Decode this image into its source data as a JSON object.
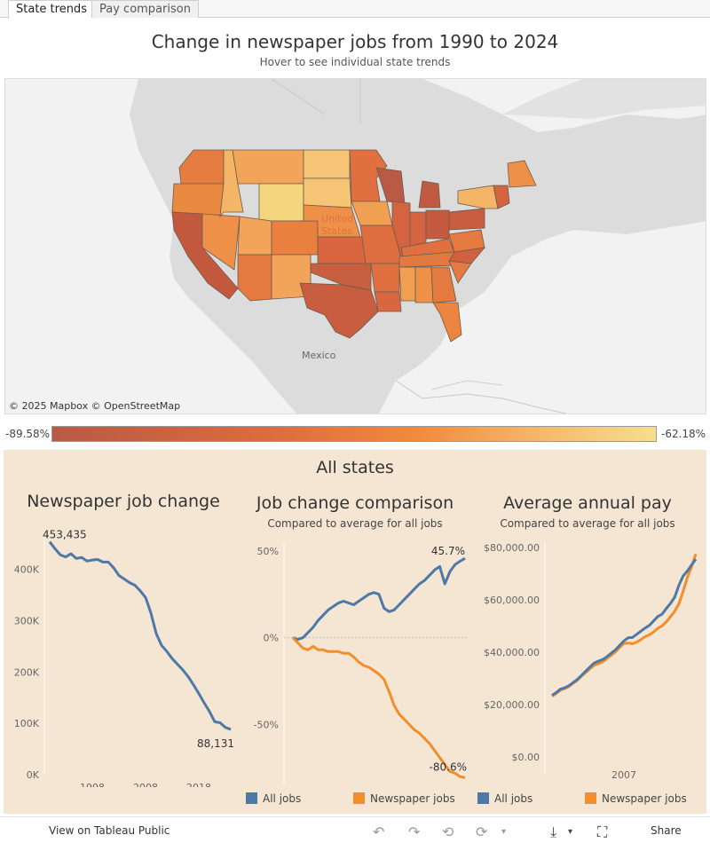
{
  "tabs": [
    "State trends",
    "Pay comparison"
  ],
  "header": {
    "title": "Change in newspaper jobs from 1990 to 2024",
    "subtitle": "Hover to see individual state trends"
  },
  "map": {
    "credit": "© 2025 Mapbox  © OpenStreetMap",
    "labels": [
      "United States",
      "Mexico"
    ],
    "legend_min": "-89.58%",
    "legend_max": "-62.18%"
  },
  "panel": {
    "title": "All states"
  },
  "charts": [
    {
      "title": "Newspaper job change",
      "subtitle": ""
    },
    {
      "title": "Job change comparison",
      "subtitle": "Compared to average for all jobs"
    },
    {
      "title": "Average annual pay",
      "subtitle": "Compared to average for all jobs"
    }
  ],
  "legend": {
    "all_jobs": "All jobs",
    "newspaper_jobs": "Newspaper jobs"
  },
  "colors": {
    "all_jobs": "#4e79a7",
    "newspaper_jobs": "#f28e2b",
    "panel_bg": "#f4e6d3"
  },
  "chart_data": [
    {
      "type": "line",
      "title": "Newspaper job change",
      "x": [
        1990,
        1991,
        1992,
        1993,
        1994,
        1995,
        1996,
        1997,
        1998,
        1999,
        2000,
        2001,
        2002,
        2003,
        2004,
        2005,
        2006,
        2007,
        2008,
        2009,
        2010,
        2011,
        2012,
        2013,
        2014,
        2015,
        2016,
        2017,
        2018,
        2019,
        2020,
        2021,
        2022,
        2023,
        2024
      ],
      "series": [
        {
          "name": "",
          "values": [
            453435,
            440000,
            428000,
            424000,
            430000,
            421000,
            423000,
            416000,
            418000,
            419000,
            414000,
            414000,
            403000,
            388000,
            381000,
            374000,
            369000,
            358000,
            345000,
            315000,
            275000,
            252000,
            240000,
            226000,
            215000,
            204000,
            191000,
            175000,
            158000,
            140000,
            123000,
            103000,
            101000,
            92000,
            88131
          ]
        }
      ],
      "annotations": [
        "453,435",
        "88,131"
      ],
      "x_ticks": [
        "1998",
        "2008",
        "2018"
      ],
      "y_ticks": [
        "0K",
        "100K",
        "200K",
        "300K",
        "400K"
      ],
      "ylim": [
        0,
        470000
      ],
      "xlim": [
        1990,
        2024
      ]
    },
    {
      "type": "line",
      "title": "Job change comparison",
      "subtitle": "Compared to average for all jobs",
      "x": [
        1990,
        1991,
        1992,
        1993,
        1994,
        1995,
        1996,
        1997,
        1998,
        1999,
        2000,
        2001,
        2002,
        2003,
        2004,
        2005,
        2006,
        2007,
        2008,
        2009,
        2010,
        2011,
        2012,
        2013,
        2014,
        2015,
        2016,
        2017,
        2018,
        2019,
        2020,
        2021,
        2022,
        2023,
        2024
      ],
      "series": [
        {
          "name": "All jobs",
          "values": [
            0,
            -1,
            0,
            3,
            6,
            10,
            13,
            16,
            18,
            20,
            21,
            20,
            19,
            21,
            23,
            25,
            26,
            25,
            17,
            15,
            16,
            19,
            22,
            25,
            28,
            31,
            33,
            36,
            39,
            41,
            31,
            38,
            42,
            44,
            45.7
          ]
        },
        {
          "name": "Newspaper jobs",
          "values": [
            0,
            -3,
            -6,
            -7,
            -5,
            -7,
            -7,
            -8,
            -8,
            -8,
            -9,
            -9,
            -11,
            -14,
            -16,
            -17,
            -19,
            -21,
            -24,
            -31,
            -39,
            -44,
            -47,
            -50,
            -53,
            -55,
            -58,
            -61,
            -65,
            -69,
            -73,
            -77,
            -78,
            -80,
            -80.6
          ]
        }
      ],
      "annotations": [
        "45.7%",
        "-80.6%"
      ],
      "y_ticks": [
        "50%",
        "0%",
        "-50%"
      ],
      "ylim": [
        -85,
        55
      ],
      "xlim": [
        1990,
        2024
      ]
    },
    {
      "type": "line",
      "title": "Average annual pay",
      "subtitle": "Compared to average for all jobs",
      "x": [
        1990,
        1991,
        1992,
        1993,
        1994,
        1995,
        1996,
        1997,
        1998,
        1999,
        2000,
        2001,
        2002,
        2003,
        2004,
        2005,
        2006,
        2007,
        2008,
        2009,
        2010,
        2011,
        2012,
        2013,
        2014,
        2015,
        2016,
        2017,
        2018,
        2019,
        2020,
        2021,
        2022,
        2023,
        2024
      ],
      "series": [
        {
          "name": "All jobs",
          "values": [
            23500,
            24600,
            25900,
            26400,
            27200,
            28400,
            29600,
            31200,
            32800,
            34400,
            35900,
            36600,
            37200,
            38300,
            39600,
            40900,
            42600,
            44300,
            45500,
            45600,
            46800,
            48000,
            49200,
            50200,
            51900,
            53600,
            54500,
            56600,
            58600,
            61000,
            65500,
            69100,
            71000,
            73300,
            75500
          ]
        },
        {
          "name": "Newspaper jobs",
          "values": [
            23200,
            24200,
            25500,
            26100,
            26900,
            28100,
            29300,
            30900,
            32300,
            33700,
            35000,
            35600,
            36300,
            37600,
            38800,
            40100,
            41800,
            43300,
            43500,
            43200,
            43800,
            44800,
            45900,
            46600,
            47700,
            49100,
            50000,
            51500,
            53500,
            55600,
            58400,
            63200,
            68500,
            72500,
            77500
          ]
        }
      ],
      "x_ticks": [
        "2007"
      ],
      "y_ticks": [
        "$0.00",
        "$20,000.00",
        "$40,000.00",
        "$60,000.00",
        "$80,000.00"
      ],
      "ylim": [
        0,
        82000
      ],
      "xlim": [
        1990,
        2024
      ]
    }
  ],
  "footer": {
    "view_label": "View on Tableau Public",
    "share_label": "Share"
  }
}
